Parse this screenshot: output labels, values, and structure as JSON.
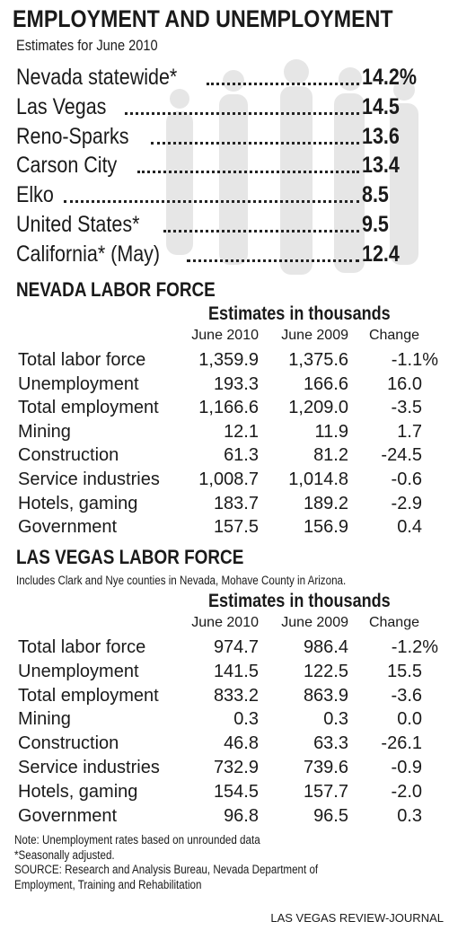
{
  "header": {
    "title": "EMPLOYMENT AND UNEMPLOYMENT",
    "subtitle": "Estimates for June 2010"
  },
  "rates": [
    {
      "label": "Nevada statewide*",
      "value": "14.2%"
    },
    {
      "label": "Las Vegas",
      "value": "14.5"
    },
    {
      "label": "Reno-Sparks",
      "value": "13.6"
    },
    {
      "label": "Carson City",
      "value": "13.4"
    },
    {
      "label": "Elko",
      "value": "8.5"
    },
    {
      "label": "United States*",
      "value": "9.5"
    },
    {
      "label": "California* (May)",
      "value": "12.4"
    }
  ],
  "nevada": {
    "title": "NEVADA LABOR FORCE",
    "caption": "Estimates in thousands",
    "columns": [
      "June 2010",
      "June 2009",
      "Change"
    ],
    "rows": [
      [
        "Total labor force",
        "1,359.9",
        "1,375.6",
        "-1.1%"
      ],
      [
        "Unemployment",
        "193.3",
        "166.6",
        "16.0"
      ],
      [
        "Total employment",
        "1,166.6",
        "1,209.0",
        "-3.5"
      ],
      [
        "Mining",
        "12.1",
        "11.9",
        "1.7"
      ],
      [
        "Construction",
        "61.3",
        "81.2",
        "-24.5"
      ],
      [
        "Service industries",
        "1,008.7",
        "1,014.8",
        "-0.6"
      ],
      [
        "Hotels, gaming",
        "183.7",
        "189.2",
        "-2.9"
      ],
      [
        "Government",
        "157.5",
        "156.9",
        "0.4"
      ]
    ]
  },
  "las_vegas": {
    "title": "LAS VEGAS LABOR FORCE",
    "note": "Includes Clark and Nye counties in Nevada, Mohave County in Arizona.",
    "caption": "Estimates in thousands",
    "columns": [
      "June 2010",
      "June 2009",
      "Change"
    ],
    "rows": [
      [
        "Total labor force",
        "974.7",
        "986.4",
        "-1.2%"
      ],
      [
        "Unemployment",
        "141.5",
        "122.5",
        "15.5"
      ],
      [
        "Total employment",
        "833.2",
        "863.9",
        "-3.6"
      ],
      [
        "Mining",
        "0.3",
        "0.3",
        "0.0"
      ],
      [
        "Construction",
        "46.8",
        "63.3",
        "-26.1"
      ],
      [
        "Service industries",
        "732.9",
        "739.6",
        "-0.9"
      ],
      [
        "Hotels, gaming",
        "154.5",
        "157.7",
        "-2.0"
      ],
      [
        "Government",
        "96.8",
        "96.5",
        "0.3"
      ]
    ]
  },
  "footer": {
    "notes": [
      "Note: Unemployment rates based on unrounded data",
      "*Seasonally adjusted.",
      "SOURCE: Research and Analysis Bureau, Nevada Department of",
      "Employment, Training and Rehabilitation"
    ],
    "credit": "LAS VEGAS REVIEW-JOURNAL"
  }
}
